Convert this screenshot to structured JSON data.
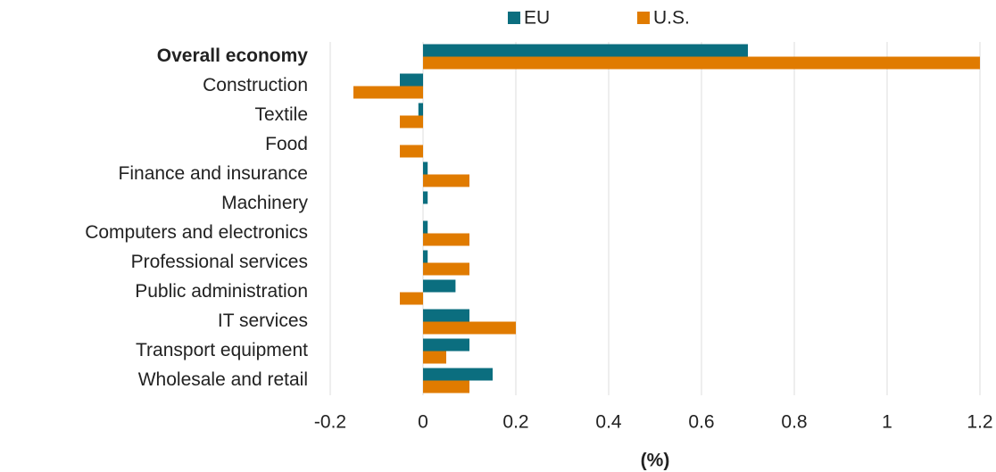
{
  "chart_data": {
    "type": "bar",
    "orientation": "horizontal",
    "categories": [
      "Overall economy",
      "Construction",
      "Textile",
      "Food",
      "Finance and insurance",
      "Machinery",
      "Computers and electronics",
      "Professional services",
      "Public administration",
      "IT services",
      "Transport equipment",
      "Wholesale and retail"
    ],
    "series": [
      {
        "name": "EU",
        "color": "#0b6e7f",
        "values": [
          0.7,
          -0.05,
          -0.01,
          0,
          0.01,
          0.01,
          0.01,
          0.01,
          0.07,
          0.1,
          0.1,
          0.15
        ]
      },
      {
        "name": "U.S.",
        "color": "#e07b00",
        "values": [
          1.2,
          -0.15,
          -0.05,
          -0.05,
          0.1,
          0,
          0.1,
          0.1,
          -0.05,
          0.2,
          0.05,
          0.1
        ]
      }
    ],
    "xlabel": "(%)",
    "xlim": [
      -0.2,
      1.2
    ],
    "xticks": [
      -0.2,
      0,
      0.2,
      0.4,
      0.6,
      0.8,
      1,
      1.2
    ],
    "grid": true,
    "legend": "top"
  }
}
